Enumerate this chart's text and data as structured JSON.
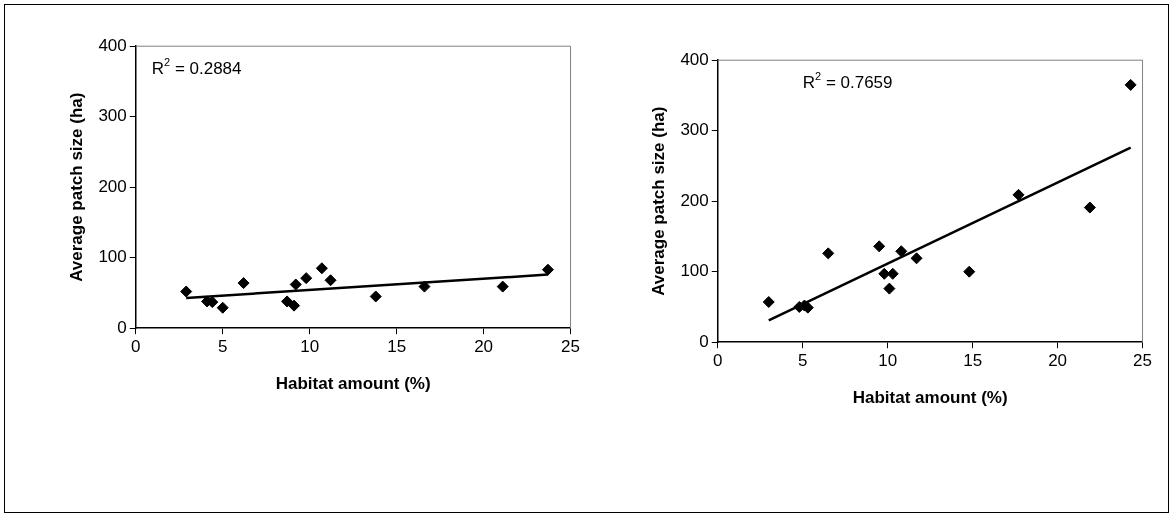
{
  "chart_data": [
    {
      "type": "scatter",
      "xlabel": "Habitat amount (%)",
      "ylabel": "Average patch size (ha)",
      "xlim": [
        0,
        25
      ],
      "xticks": [
        0,
        5,
        10,
        15,
        20,
        25
      ],
      "ylim": [
        0,
        400
      ],
      "yticks": [
        0,
        100,
        200,
        300,
        400
      ],
      "marker": "diamond",
      "annotations": [
        "R$^{2}$ = 0.2884"
      ],
      "series": [
        {
          "color": "#000000",
          "x": [
            2.9,
            4.1,
            4.4,
            5.0,
            6.2,
            8.7,
            9.1,
            9.2,
            9.8,
            10.7,
            11.2,
            13.8,
            16.6,
            21.1,
            23.7
          ],
          "values": [
            52,
            38,
            37,
            29,
            64,
            38,
            32,
            62,
            71,
            85,
            68,
            45,
            59,
            59,
            83
          ]
        },
        {
          "type": "line",
          "marker": "none",
          "color": "#000000",
          "x": [
            2.9,
            23.7
          ],
          "values": [
            43,
            76
          ]
        }
      ]
    },
    {
      "type": "scatter",
      "xlabel": "Habitat amount (%)",
      "ylabel": "Average patch size (ha)",
      "xlim": [
        0,
        25
      ],
      "xticks": [
        0,
        5,
        10,
        15,
        20,
        25
      ],
      "ylim": [
        0,
        400
      ],
      "yticks": [
        0,
        100,
        200,
        300,
        400
      ],
      "marker": "diamond",
      "annotations": [
        "R$^{2}$ = 0.7659"
      ],
      "series": [
        {
          "color": "#000000",
          "x": [
            3.0,
            4.8,
            5.1,
            5.3,
            6.5,
            9.5,
            9.8,
            10.1,
            10.3,
            10.8,
            11.7,
            14.8,
            17.7,
            21.9,
            24.3
          ],
          "values": [
            57,
            50,
            52,
            49,
            126,
            136,
            97,
            76,
            97,
            129,
            119,
            100,
            209,
            191,
            365
          ]
        },
        {
          "type": "line",
          "marker": "none",
          "color": "#000000",
          "x": [
            3.0,
            24.3
          ],
          "values": [
            31,
            276
          ]
        }
      ]
    }
  ]
}
